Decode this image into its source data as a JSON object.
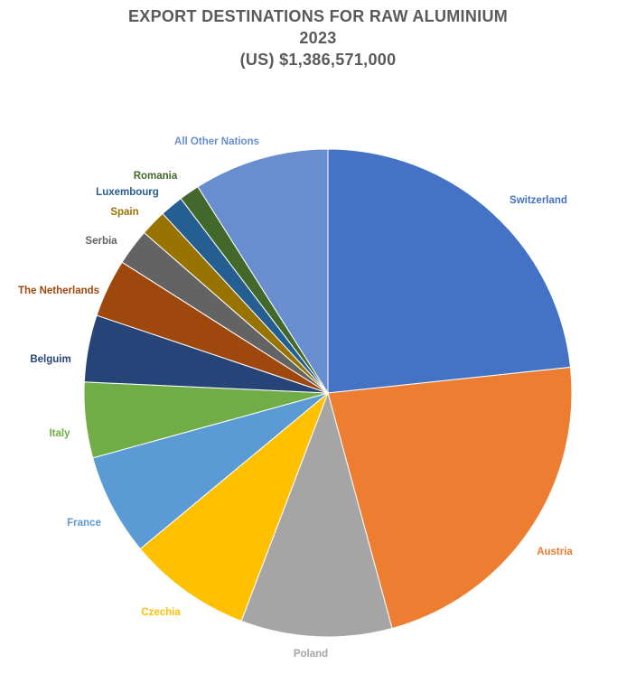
{
  "chart_data": {
    "type": "pie",
    "title": "EXPORT DESTINATIONS FOR RAW ALUMINIUM",
    "subtitle_year": "2023",
    "subtitle_total": "(US) $1,386,571,000",
    "start_angle_deg": 0,
    "direction": "clockwise",
    "slices": [
      {
        "label": "Switzerland",
        "value": 24.2,
        "color": "#4472c4",
        "label_color": "#4472c4"
      },
      {
        "label": "Austria",
        "value": 23.3,
        "color": "#ed7d31",
        "label_color": "#ed7d31"
      },
      {
        "label": "Poland",
        "value": 10.4,
        "color": "#a5a5a5",
        "label_color": "#a5a5a5"
      },
      {
        "label": "Czechia",
        "value": 8.5,
        "color": "#ffc000",
        "label_color": "#ffc000"
      },
      {
        "label": "France",
        "value": 7.0,
        "color": "#5b9bd5",
        "label_color": "#5b9bd5"
      },
      {
        "label": "Italy",
        "value": 5.2,
        "color": "#70ad47",
        "label_color": "#70ad47"
      },
      {
        "label": "Belguim",
        "value": 4.6,
        "color": "#264478",
        "label_color": "#264478"
      },
      {
        "label": "The Netherlands",
        "value": 4.0,
        "color": "#9e480e",
        "label_color": "#9e480e"
      },
      {
        "label": "Serbia",
        "value": 2.5,
        "color": "#636363",
        "label_color": "#636363"
      },
      {
        "label": "Spain",
        "value": 1.8,
        "color": "#997300",
        "label_color": "#997300"
      },
      {
        "label": "Luxembourg",
        "value": 1.6,
        "color": "#255e91",
        "label_color": "#255e91"
      },
      {
        "label": "Romania",
        "value": 1.4,
        "color": "#43682b",
        "label_color": "#43682b"
      },
      {
        "label": "All Other Nations",
        "value": 9.3,
        "color": "#698ed0",
        "label_color": "#698ed0"
      }
    ]
  }
}
